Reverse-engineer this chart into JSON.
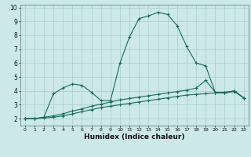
{
  "background_color": "#cce8e8",
  "plot_bg_color": "#cce8e8",
  "grid_color": "#aacccc",
  "line_color": "#1a6b5a",
  "xlabel": "Humidex (Indice chaleur)",
  "xlim": [
    -0.5,
    23.5
  ],
  "ylim": [
    1.5,
    10.2
  ],
  "yticks": [
    2,
    3,
    4,
    5,
    6,
    7,
    8,
    9,
    10
  ],
  "xticks": [
    0,
    1,
    2,
    3,
    4,
    5,
    6,
    7,
    8,
    9,
    10,
    11,
    12,
    13,
    14,
    15,
    16,
    17,
    18,
    19,
    20,
    21,
    22,
    23
  ],
  "series1_x": [
    0,
    1,
    2,
    3,
    4,
    5,
    6,
    7,
    8,
    9,
    10,
    11,
    12,
    13,
    14,
    15,
    16,
    17,
    18,
    19,
    20,
    21,
    22,
    23
  ],
  "series1_y": [
    2.0,
    2.0,
    2.1,
    3.8,
    4.2,
    4.5,
    4.4,
    3.9,
    3.3,
    3.3,
    6.0,
    7.9,
    9.2,
    9.4,
    9.65,
    9.5,
    8.7,
    7.2,
    6.0,
    5.8,
    3.9,
    3.9,
    4.0,
    3.5
  ],
  "series2_x": [
    0,
    1,
    2,
    3,
    4,
    5,
    6,
    7,
    8,
    9,
    10,
    11,
    12,
    13,
    14,
    15,
    16,
    17,
    18,
    19,
    20,
    21,
    22,
    23
  ],
  "series2_y": [
    2.0,
    2.0,
    2.1,
    2.2,
    2.35,
    2.55,
    2.7,
    2.9,
    3.05,
    3.2,
    3.35,
    3.45,
    3.55,
    3.65,
    3.75,
    3.85,
    3.95,
    4.05,
    4.2,
    4.75,
    3.9,
    3.85,
    4.0,
    3.5
  ],
  "series3_x": [
    0,
    1,
    2,
    3,
    4,
    5,
    6,
    7,
    8,
    9,
    10,
    11,
    12,
    13,
    14,
    15,
    16,
    17,
    18,
    19,
    20,
    21,
    22,
    23
  ],
  "series3_y": [
    2.0,
    2.0,
    2.05,
    2.1,
    2.2,
    2.35,
    2.5,
    2.65,
    2.8,
    2.9,
    3.0,
    3.1,
    3.2,
    3.3,
    3.4,
    3.5,
    3.6,
    3.7,
    3.75,
    3.8,
    3.85,
    3.85,
    3.95,
    3.5
  ]
}
